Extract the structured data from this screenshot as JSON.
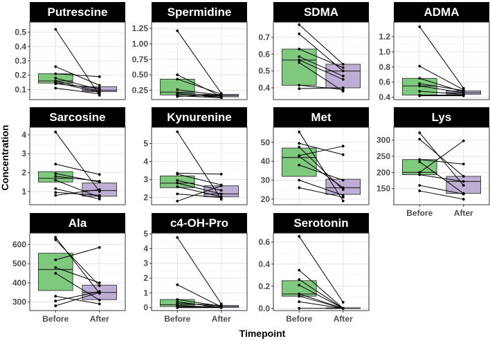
{
  "chart_data": {
    "type": "boxplot-faceted",
    "xlabel": "Timepoint",
    "ylabel": "Concentration",
    "categories": [
      "Before",
      "After"
    ],
    "colors": {
      "Before": "#7fc97f",
      "After": "#beaed4",
      "strip": "#000000"
    },
    "facets": [
      {
        "title": "Putrescine",
        "ylim": [
          0.03,
          0.57
        ],
        "yticks": [
          0.1,
          0.2,
          0.3,
          0.4,
          0.5
        ],
        "ytick_labels": [
          "0.1",
          "0.2",
          "0.3",
          "0.4",
          "0.5"
        ],
        "boxes": [
          {
            "group": "Before",
            "q1": 0.145,
            "median": 0.16,
            "q3": 0.21
          },
          {
            "group": "After",
            "q1": 0.085,
            "median": 0.095,
            "q3": 0.12
          }
        ],
        "pairs": [
          [
            0.52,
            0.06
          ],
          [
            0.26,
            0.13
          ],
          [
            0.21,
            0.19
          ],
          [
            0.18,
            0.1
          ],
          [
            0.16,
            0.09
          ],
          [
            0.15,
            0.08
          ],
          [
            0.14,
            0.11
          ],
          [
            0.11,
            0.07
          ]
        ]
      },
      {
        "title": "Spermidine",
        "ylim": [
          0.1,
          1.35
        ],
        "yticks": [
          0.25,
          0.5,
          0.75,
          1.0,
          1.25
        ],
        "ytick_labels": [
          "0.25",
          "0.50",
          "0.75",
          "1.00",
          "1.25"
        ],
        "boxes": [
          {
            "group": "Before",
            "q1": 0.175,
            "median": 0.22,
            "q3": 0.43
          },
          {
            "group": "After",
            "q1": 0.145,
            "median": 0.165,
            "q3": 0.185
          }
        ],
        "pairs": [
          [
            1.21,
            0.2
          ],
          [
            0.5,
            0.15
          ],
          [
            0.43,
            0.19
          ],
          [
            0.26,
            0.17
          ],
          [
            0.21,
            0.16
          ],
          [
            0.19,
            0.14
          ],
          [
            0.16,
            0.13
          ],
          [
            0.15,
            0.18
          ]
        ]
      },
      {
        "title": "SDMA",
        "ylim": [
          0.33,
          0.79
        ],
        "yticks": [
          0.4,
          0.5,
          0.6,
          0.7
        ],
        "ytick_labels": [
          "0.4",
          "0.5",
          "0.6",
          "0.7"
        ],
        "boxes": [
          {
            "group": "Before",
            "q1": 0.415,
            "median": 0.565,
            "q3": 0.63
          },
          {
            "group": "After",
            "q1": 0.4,
            "median": 0.5,
            "q3": 0.54
          }
        ],
        "pairs": [
          [
            0.775,
            0.54
          ],
          [
            0.72,
            0.5
          ],
          [
            0.63,
            0.52
          ],
          [
            0.585,
            0.47
          ],
          [
            0.565,
            0.45
          ],
          [
            0.55,
            0.38
          ],
          [
            0.415,
            0.39
          ],
          [
            0.395,
            0.4
          ]
        ]
      },
      {
        "title": "ADMA",
        "ylim": [
          0.37,
          1.39
        ],
        "yticks": [
          0.4,
          0.6,
          0.8,
          1.0,
          1.2
        ],
        "ytick_labels": [
          "0.4",
          "0.6",
          "0.8",
          "1.0",
          "1.2"
        ],
        "boxes": [
          {
            "group": "Before",
            "q1": 0.43,
            "median": 0.55,
            "q3": 0.65
          },
          {
            "group": "After",
            "q1": 0.44,
            "median": 0.46,
            "q3": 0.485
          }
        ],
        "pairs": [
          [
            1.33,
            0.52
          ],
          [
            0.81,
            0.5
          ],
          [
            0.65,
            0.47
          ],
          [
            0.58,
            0.49
          ],
          [
            0.55,
            0.46
          ],
          [
            0.48,
            0.44
          ],
          [
            0.43,
            0.43
          ],
          [
            0.42,
            0.42
          ]
        ]
      },
      {
        "title": "Sarcosine",
        "ylim": [
          0.3,
          4.4
        ],
        "yticks": [
          1,
          2,
          3,
          4
        ],
        "ytick_labels": [
          "1",
          "2",
          "3",
          "4"
        ],
        "boxes": [
          {
            "group": "Before",
            "q1": 1.5,
            "median": 1.7,
            "q3": 2.05
          },
          {
            "group": "After",
            "q1": 0.75,
            "median": 1.05,
            "q3": 1.45
          }
        ],
        "pairs": [
          [
            4.15,
            1.0
          ],
          [
            2.45,
            1.9
          ],
          [
            1.95,
            1.5
          ],
          [
            1.8,
            1.55
          ],
          [
            1.6,
            0.7
          ],
          [
            1.15,
            0.6
          ],
          [
            0.95,
            0.8
          ],
          [
            0.8,
            1.1
          ]
        ]
      },
      {
        "title": "Kynurenine",
        "ylim": [
          1.6,
          5.9
        ],
        "yticks": [
          2,
          3,
          4,
          5
        ],
        "ytick_labels": [
          "2",
          "3",
          "4",
          "5"
        ],
        "boxes": [
          {
            "group": "Before",
            "q1": 2.55,
            "median": 2.8,
            "q3": 3.2
          },
          {
            "group": "After",
            "q1": 2.05,
            "median": 2.2,
            "q3": 2.65
          }
        ],
        "pairs": [
          [
            5.65,
            1.9
          ],
          [
            3.35,
            3.3
          ],
          [
            3.3,
            2.7
          ],
          [
            2.95,
            2.4
          ],
          [
            2.8,
            2.2
          ],
          [
            2.6,
            2.05
          ],
          [
            2.2,
            2.0
          ],
          [
            1.8,
            2.65
          ]
        ]
      },
      {
        "title": "Met",
        "ylim": [
          17,
          58
        ],
        "yticks": [
          20,
          30,
          40,
          50
        ],
        "ytick_labels": [
          "20",
          "30",
          "40",
          "50"
        ],
        "boxes": [
          {
            "group": "Before",
            "q1": 32,
            "median": 42,
            "q3": 47
          },
          {
            "group": "After",
            "q1": 22.5,
            "median": 26,
            "q3": 30.5
          }
        ],
        "pairs": [
          [
            55.5,
            19
          ],
          [
            49.5,
            43.5
          ],
          [
            47.5,
            25
          ],
          [
            43,
            48
          ],
          [
            42.5,
            26
          ],
          [
            38,
            30
          ],
          [
            30,
            22
          ],
          [
            26,
            21
          ]
        ]
      },
      {
        "title": "Lys",
        "ylim": [
          100,
          340
        ],
        "yticks": [
          150,
          200,
          250,
          300
        ],
        "ytick_labels": [
          "150",
          "200",
          "250",
          "300"
        ],
        "boxes": [
          {
            "group": "Before",
            "q1": 193,
            "median": 200,
            "q3": 240
          },
          {
            "group": "After",
            "q1": 135,
            "median": 172,
            "q3": 188
          }
        ],
        "pairs": [
          [
            323,
            160
          ],
          [
            303,
            188
          ],
          [
            240,
            226
          ],
          [
            233,
            135
          ],
          [
            200,
            298
          ],
          [
            193,
            172
          ],
          [
            160,
            133
          ],
          [
            143,
            117
          ]
        ]
      },
      {
        "title": "Ala",
        "ylim": [
          255,
          660
        ],
        "yticks": [
          300,
          400,
          500,
          600
        ],
        "ytick_labels": [
          "300",
          "400",
          "500",
          "600"
        ],
        "boxes": [
          {
            "group": "Before",
            "q1": 360,
            "median": 470,
            "q3": 555
          },
          {
            "group": "After",
            "q1": 312,
            "median": 350,
            "q3": 388
          }
        ],
        "pairs": [
          [
            638,
            345
          ],
          [
            625,
            385
          ],
          [
            520,
            585
          ],
          [
            480,
            400
          ],
          [
            450,
            310
          ],
          [
            330,
            290
          ],
          [
            305,
            355
          ],
          [
            280,
            350
          ]
        ]
      },
      {
        "title": "c4-OH-Pro",
        "ylim": [
          -0.2,
          5.05
        ],
        "yticks": [
          0,
          1,
          2,
          3,
          4,
          5
        ],
        "ytick_labels": [
          "0",
          "1",
          "2",
          "3",
          "4",
          "5"
        ],
        "boxes": [
          {
            "group": "Before",
            "q1": 0.08,
            "median": 0.2,
            "q3": 0.55
          },
          {
            "group": "After",
            "q1": 0.02,
            "median": 0.06,
            "q3": 0.15
          }
        ],
        "pairs": [
          [
            4.75,
            0.25
          ],
          [
            1.55,
            0.05
          ],
          [
            0.55,
            0.1
          ],
          [
            0.4,
            0.0
          ],
          [
            0.3,
            0.15
          ],
          [
            0.15,
            0.0
          ],
          [
            0.05,
            0.02
          ],
          [
            0.0,
            0.0
          ]
        ]
      },
      {
        "title": "Serotonin",
        "ylim": [
          -0.02,
          0.68
        ],
        "yticks": [
          0.0,
          0.2,
          0.4,
          0.6
        ],
        "ytick_labels": [
          "0.0",
          "0.2",
          "0.4",
          "0.6"
        ],
        "boxes": [
          {
            "group": "Before",
            "q1": 0.11,
            "median": 0.13,
            "q3": 0.25
          },
          {
            "group": "After",
            "q1": 0.0,
            "median": 0.0,
            "q3": 0.005
          }
        ],
        "pairs": [
          [
            0.65,
            0.055
          ],
          [
            0.345,
            0.0
          ],
          [
            0.26,
            0.0
          ],
          [
            0.21,
            0.0
          ],
          [
            0.13,
            0.0
          ],
          [
            0.11,
            0.0
          ],
          [
            0.06,
            0.0
          ],
          [
            0.0,
            0.0
          ]
        ]
      }
    ]
  }
}
